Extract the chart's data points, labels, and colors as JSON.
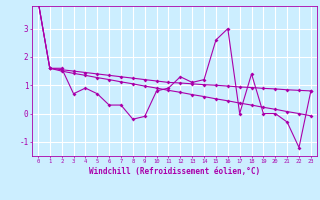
{
  "xlabel": "Windchill (Refroidissement éolien,°C)",
  "background_color": "#cceeff",
  "grid_color": "#ffffff",
  "line_color": "#aa00aa",
  "x_values": [
    0,
    1,
    2,
    3,
    4,
    5,
    6,
    7,
    8,
    9,
    10,
    11,
    12,
    13,
    14,
    15,
    16,
    17,
    18,
    19,
    20,
    21,
    22,
    23
  ],
  "series1": [
    4.0,
    1.6,
    1.6,
    0.7,
    0.9,
    0.7,
    0.3,
    0.3,
    -0.2,
    -0.1,
    0.8,
    0.9,
    1.3,
    1.1,
    1.2,
    2.6,
    3.0,
    0.0,
    1.4,
    0.0,
    0.0,
    -0.3,
    -1.2,
    0.8
  ],
  "series2": [
    4.0,
    1.6,
    1.55,
    1.5,
    1.45,
    1.4,
    1.35,
    1.3,
    1.25,
    1.2,
    1.15,
    1.1,
    1.08,
    1.05,
    1.02,
    1.0,
    0.97,
    0.94,
    0.92,
    0.89,
    0.87,
    0.84,
    0.82,
    0.8
  ],
  "series3": [
    4.0,
    1.6,
    1.5,
    1.42,
    1.35,
    1.27,
    1.2,
    1.12,
    1.05,
    0.97,
    0.9,
    0.82,
    0.75,
    0.67,
    0.6,
    0.52,
    0.45,
    0.37,
    0.3,
    0.22,
    0.15,
    0.07,
    0.0,
    -0.08
  ],
  "ylim": [
    -1.5,
    3.8
  ],
  "xlim": [
    -0.5,
    23.5
  ],
  "yticks": [
    -1,
    0,
    1,
    2,
    3
  ],
  "xticks": [
    0,
    1,
    2,
    3,
    4,
    5,
    6,
    7,
    8,
    9,
    10,
    11,
    12,
    13,
    14,
    15,
    16,
    17,
    18,
    19,
    20,
    21,
    22,
    23
  ]
}
